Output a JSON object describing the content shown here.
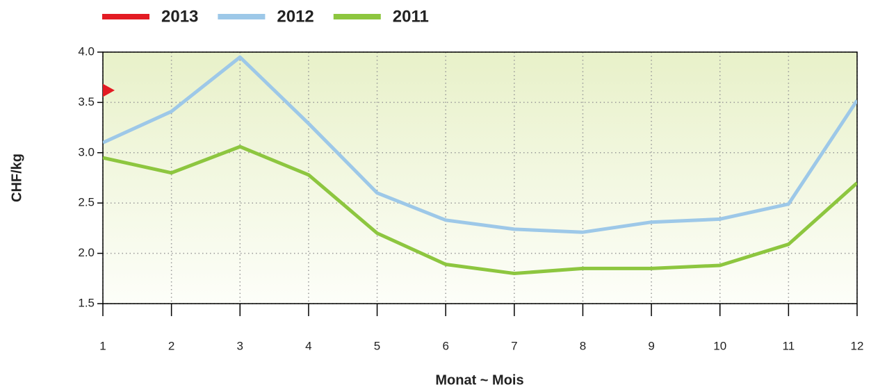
{
  "chart_data": {
    "type": "line",
    "x_label": "Monat ~ Mois",
    "y_label": "CHF/kg",
    "x": [
      1,
      2,
      3,
      4,
      5,
      6,
      7,
      8,
      9,
      10,
      11,
      12
    ],
    "series": [
      {
        "name": "2013",
        "color": "#e31b23",
        "values": [
          3.62,
          null,
          null,
          null,
          null,
          null,
          null,
          null,
          null,
          null,
          null,
          null
        ]
      },
      {
        "name": "2012",
        "color": "#9dc8e8",
        "values": [
          3.1,
          3.41,
          3.95,
          3.29,
          2.6,
          2.33,
          2.24,
          2.21,
          2.31,
          2.34,
          2.49,
          3.52
        ]
      },
      {
        "name": "2011",
        "color": "#8dc63f",
        "values": [
          2.95,
          2.8,
          3.06,
          2.78,
          2.2,
          1.89,
          1.8,
          1.85,
          1.85,
          1.88,
          2.09,
          2.7
        ]
      }
    ],
    "xlim": [
      1,
      12
    ],
    "xticks": [
      1,
      2,
      3,
      4,
      5,
      6,
      7,
      8,
      9,
      10,
      11,
      12
    ],
    "ylim": [
      1.5,
      4.0
    ],
    "yticks": [
      1.5,
      {
        "value": 2,
        "label": "2.0"
      },
      2.5,
      {
        "value": 3,
        "label": "3.0"
      },
      3.5,
      {
        "value": 4,
        "label": "4.0"
      }
    ],
    "grid": true,
    "legend": "top"
  }
}
